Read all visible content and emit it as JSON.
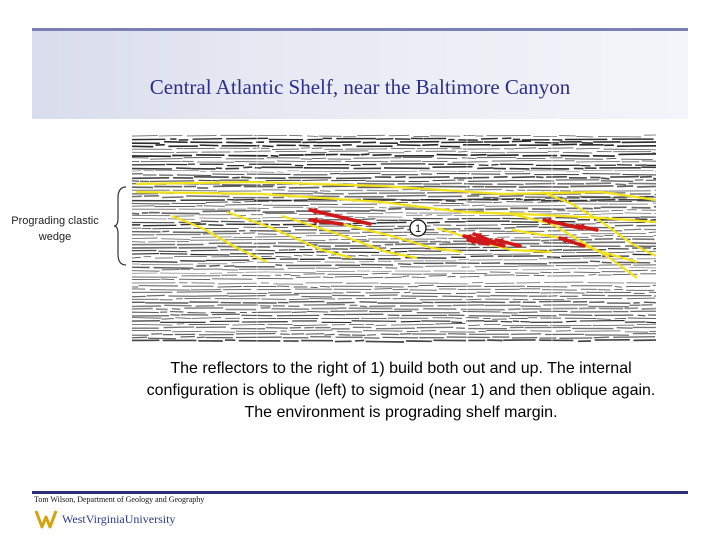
{
  "slide": {
    "title": "Central Atlantic Shelf, near the Baltimore Canyon",
    "side_label": "Prograding clastic wedge",
    "marker": "1",
    "caption": "The reflectors to the right of 1) build both out and up. The internal configuration is oblique (left) to sigmoid (near 1) and then oblique again. The environment is prograding shelf margin.",
    "footer_credit": "Tom Wilson, Department of Geology and Geography",
    "logo_text": "WestVirginiaUniversity"
  },
  "colors": {
    "title_text": "#2b2f8c",
    "horizon_yellow": "#f2e21a",
    "arrow_red": "#d01818",
    "logo_gold": "#d4a20a",
    "logo_blue": "#2b3a8f"
  },
  "icons": [
    "brace-icon",
    "wvu-logo-icon"
  ]
}
